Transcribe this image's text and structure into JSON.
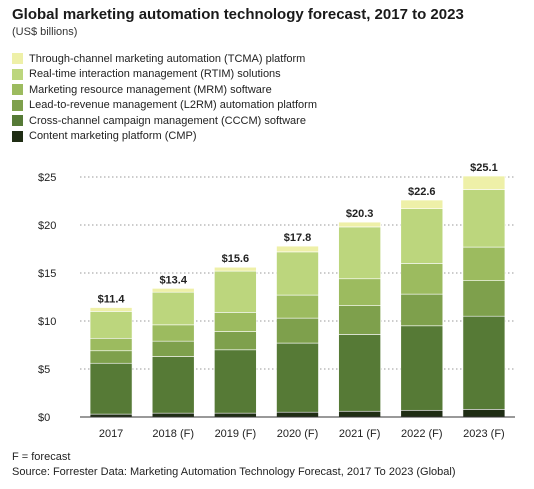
{
  "title": "Global marketing automation technology forecast, 2017 to 2023",
  "subtitle": "(US$ billions)",
  "footnote": "F = forecast",
  "source": "Source: Forrester Data: Marketing Automation Technology Forecast, 2017 To 2023 (Global)",
  "chart_data": {
    "type": "bar",
    "stacked": true,
    "title": "Global marketing automation technology forecast, 2017 to 2023",
    "subtitle": "(US$ billions)",
    "xlabel": "",
    "ylabel": "",
    "ylim": [
      0,
      25
    ],
    "yticks": [
      "$0",
      "$5",
      "$10",
      "$15",
      "$20",
      "$25"
    ],
    "ytick_values": [
      0,
      5,
      10,
      15,
      20,
      25
    ],
    "grid": "horizontal dotted",
    "legend_placement": "top-left",
    "categories": [
      "2017",
      "2018 (F)",
      "2019 (F)",
      "2020 (F)",
      "2021 (F)",
      "2022 (F)",
      "2023 (F)"
    ],
    "totals": [
      11.4,
      13.4,
      15.6,
      17.8,
      20.3,
      22.6,
      25.1
    ],
    "total_labels": [
      "$11.4",
      "$13.4",
      "$15.6",
      "$17.8",
      "$20.3",
      "$22.6",
      "$25.1"
    ],
    "series": [
      {
        "name": "Content marketing platform (CMP)",
        "color": "#1f2d14",
        "values": [
          0.3,
          0.4,
          0.4,
          0.5,
          0.6,
          0.7,
          0.8
        ]
      },
      {
        "name": "Cross-channel campaign management (CCCM) software",
        "color": "#567a36",
        "values": [
          5.3,
          5.9,
          6.6,
          7.2,
          8.0,
          8.8,
          9.7
        ]
      },
      {
        "name": "Lead-to-revenue management (L2RM) automation platform",
        "color": "#7ea04c",
        "values": [
          1.3,
          1.6,
          1.9,
          2.6,
          3.0,
          3.3,
          3.7
        ]
      },
      {
        "name": "Marketing resource management (MRM) software",
        "color": "#9cbb5f",
        "values": [
          1.3,
          1.7,
          2.0,
          2.4,
          2.8,
          3.2,
          3.5
        ]
      },
      {
        "name": "Real-time interaction management (RTIM) solutions",
        "color": "#bcd67d",
        "values": [
          2.8,
          3.4,
          4.3,
          4.5,
          5.4,
          5.7,
          6.0
        ]
      },
      {
        "name": "Through-channel marketing automation (TCMA) platform",
        "color": "#eef0a8",
        "values": [
          0.4,
          0.4,
          0.4,
          0.6,
          0.5,
          0.9,
          1.4
        ]
      }
    ]
  },
  "legend": [
    {
      "label": "Through-channel marketing automation (TCMA) platform",
      "color": "#eef0a8"
    },
    {
      "label": "Real-time interaction management (RTIM) solutions",
      "color": "#bcd67d"
    },
    {
      "label": "Marketing resource management (MRM) software",
      "color": "#9cbb5f"
    },
    {
      "label": "Lead-to-revenue management (L2RM) automation platform",
      "color": "#7ea04c"
    },
    {
      "label": "Cross-channel campaign management (CCCM) software",
      "color": "#567a36"
    },
    {
      "label": "Content marketing platform (CMP)",
      "color": "#1f2d14"
    }
  ]
}
